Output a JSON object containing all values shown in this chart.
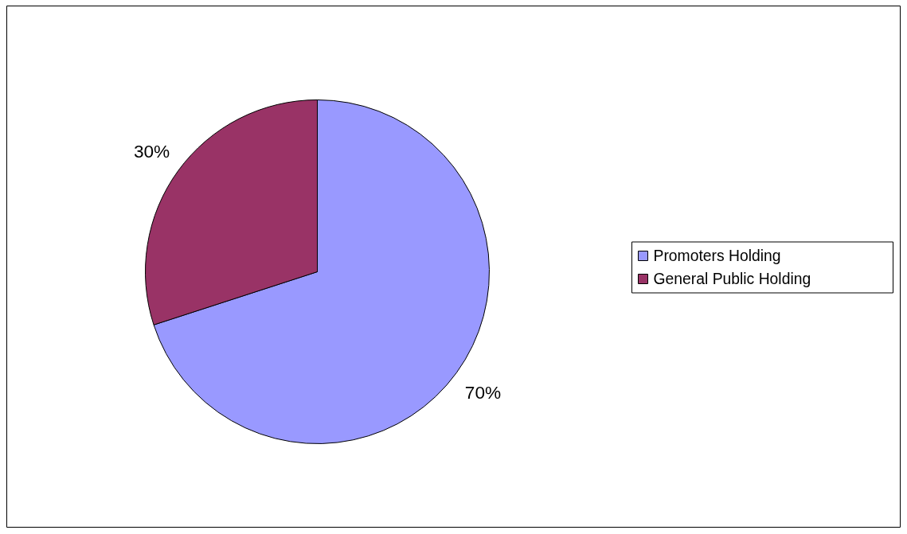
{
  "chart_data": {
    "type": "pie",
    "categories": [
      "Promoters Holding",
      "General Public Holding"
    ],
    "values": [
      70,
      30
    ],
    "colors": [
      "#9999ff",
      "#993366"
    ],
    "value_labels": [
      "70%",
      "30%"
    ],
    "legend": "right"
  }
}
